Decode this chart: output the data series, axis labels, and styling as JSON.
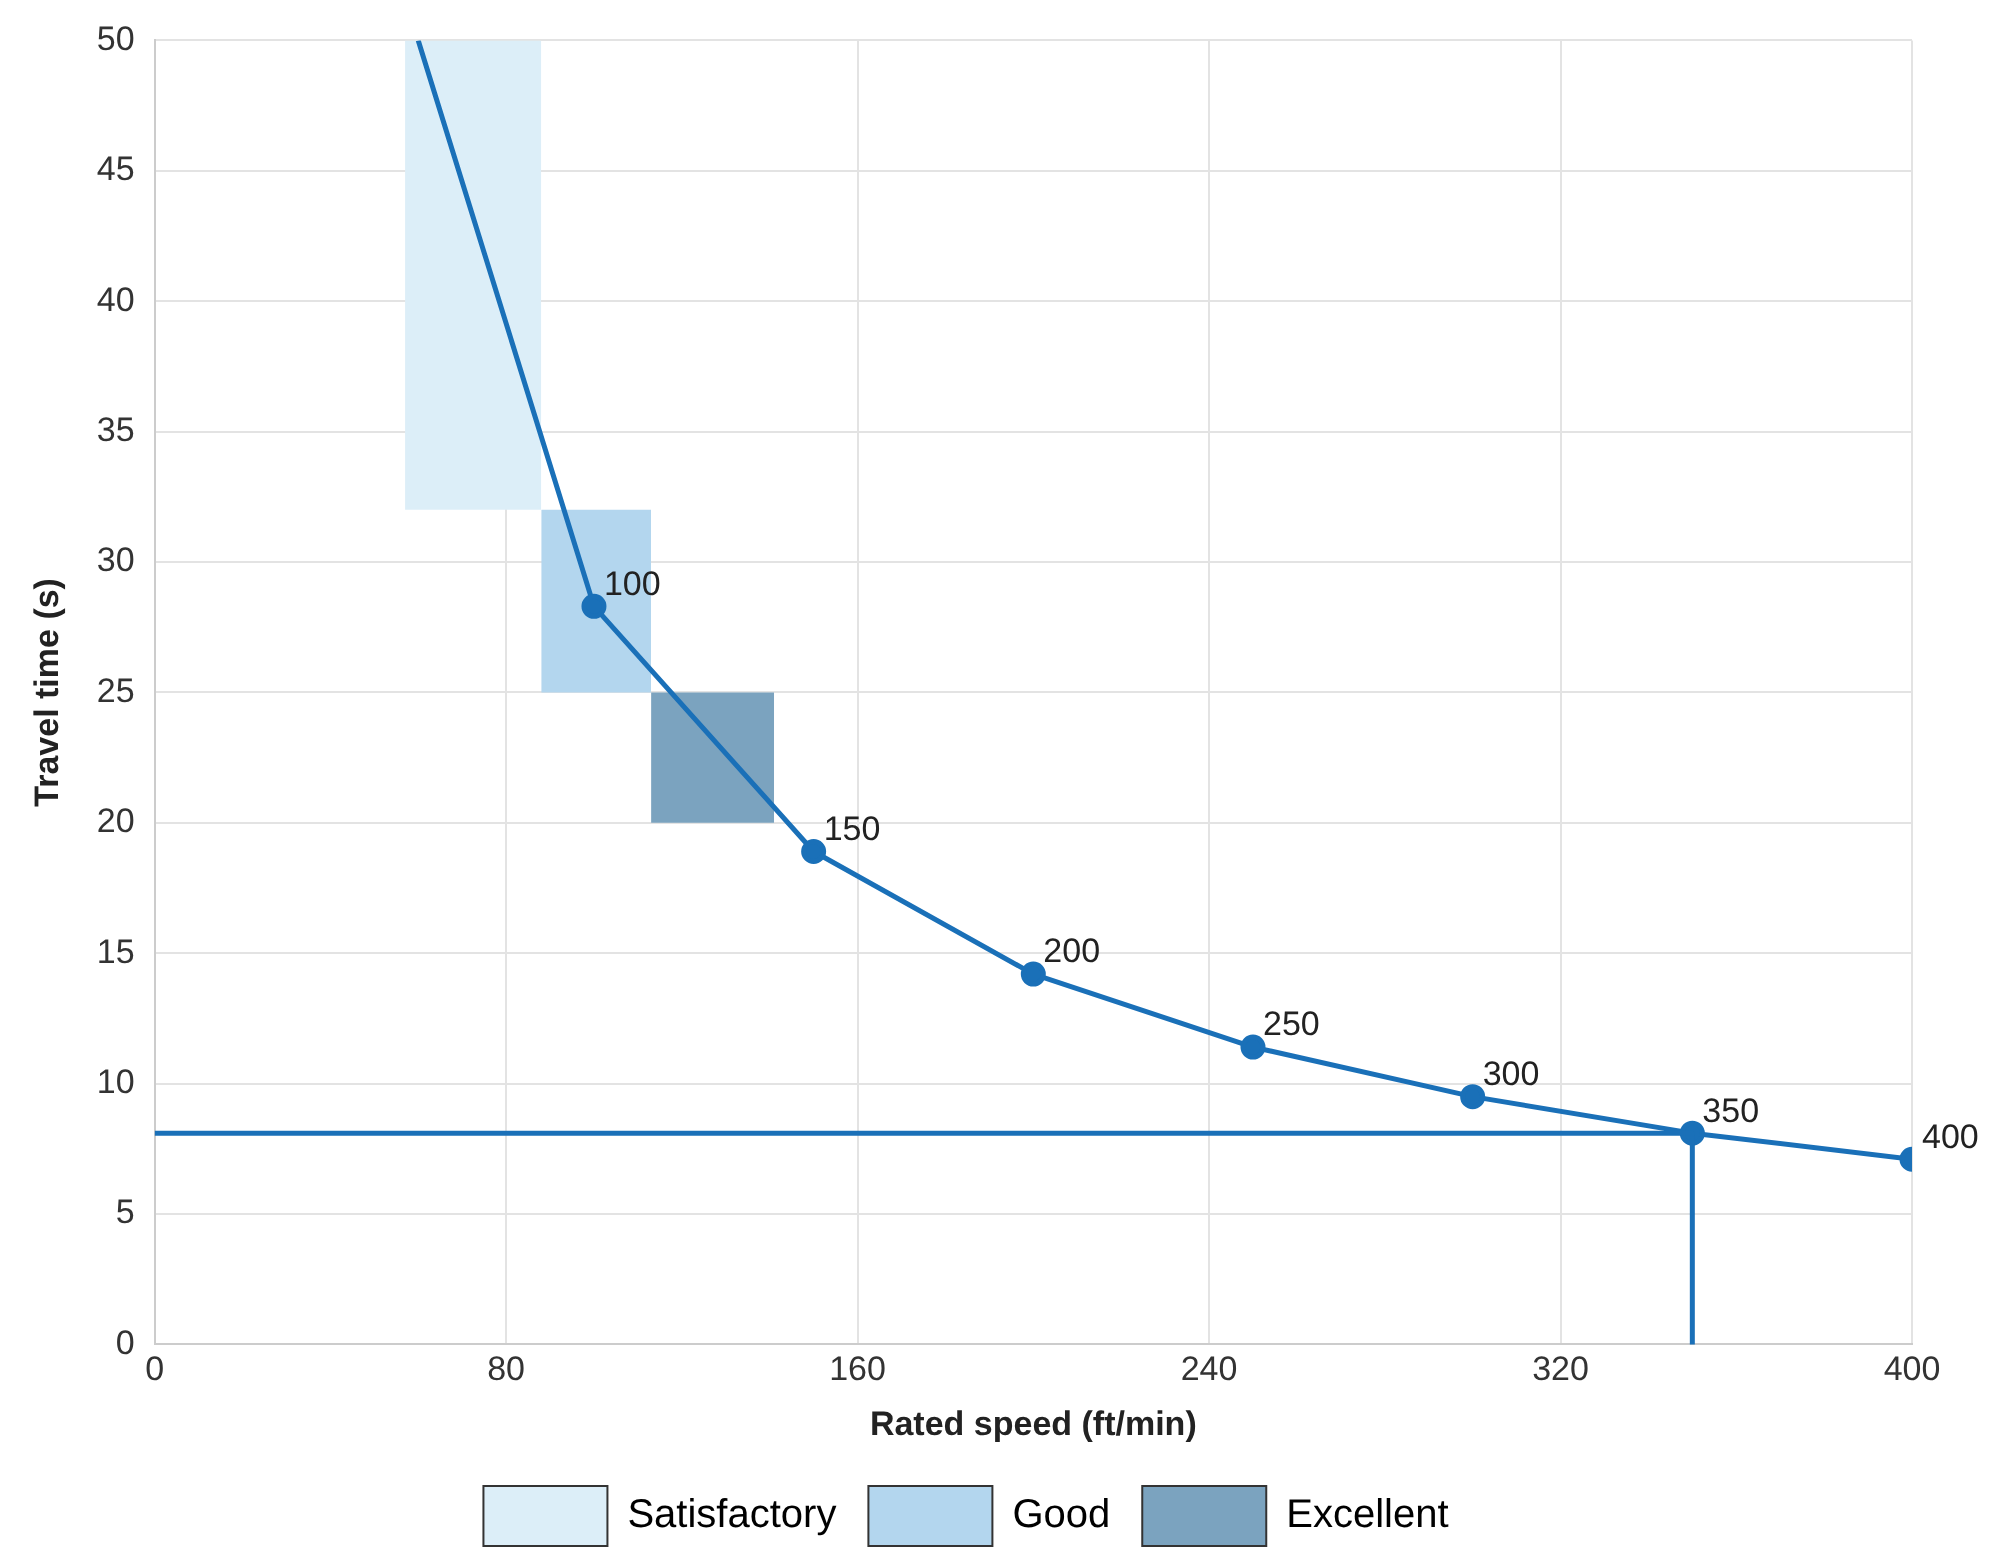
{
  "chart_data": {
    "type": "line",
    "xlabel": "Rated speed (ft/min)",
    "ylabel": "Travel time (s)",
    "xlim": [
      0,
      400
    ],
    "xticks": [
      0,
      80,
      160,
      240,
      320,
      400
    ],
    "ylim": [
      0,
      50
    ],
    "yticks": [
      0,
      5,
      10,
      15,
      20,
      25,
      30,
      35,
      40,
      45,
      50
    ],
    "grid": true,
    "legend": "bottom",
    "marker": "circle",
    "line_style": "solid",
    "series": [
      {
        "name": "Satisfactory",
        "type": "area",
        "color": "#dceef8",
        "x": [
          57,
          88
        ],
        "values": [
          null,
          null
        ],
        "lower": [
          32,
          32
        ],
        "upper": [
          50,
          50
        ]
      },
      {
        "name": "Good",
        "type": "area",
        "color": "#b3d6ee",
        "x": [
          88,
          113
        ],
        "values": [
          null,
          null
        ],
        "lower": [
          25,
          25
        ],
        "upper": [
          32,
          32
        ]
      },
      {
        "name": "Excellent",
        "type": "area",
        "color": "#7ba3bf",
        "x": [
          113,
          141
        ],
        "values": [
          null,
          null
        ],
        "lower": [
          20,
          20
        ],
        "upper": [
          25,
          25
        ]
      },
      {
        "color": "#1a70b8",
        "x": [
          0,
          350,
          350
        ],
        "values": [
          8.1,
          8.1,
          0
        ],
        "marker": "none"
      },
      {
        "color": "#1a70b8",
        "x": [
          60,
          100,
          150,
          200,
          250,
          300,
          350,
          400
        ],
        "values": [
          50,
          28.3,
          18.9,
          14.2,
          11.4,
          9.5,
          8.1,
          7.1
        ]
      }
    ],
    "annotations": [
      {
        "text": "100",
        "x": 100,
        "y": 28.3
      },
      {
        "text": "150",
        "x": 150,
        "y": 18.9
      },
      {
        "text": "200",
        "x": 200,
        "y": 14.2
      },
      {
        "text": "250",
        "x": 250,
        "y": 11.4
      },
      {
        "text": "300",
        "x": 300,
        "y": 9.5
      },
      {
        "text": "350",
        "x": 350,
        "y": 8.1
      },
      {
        "text": "400",
        "x": 400,
        "y": 7.1
      }
    ]
  }
}
